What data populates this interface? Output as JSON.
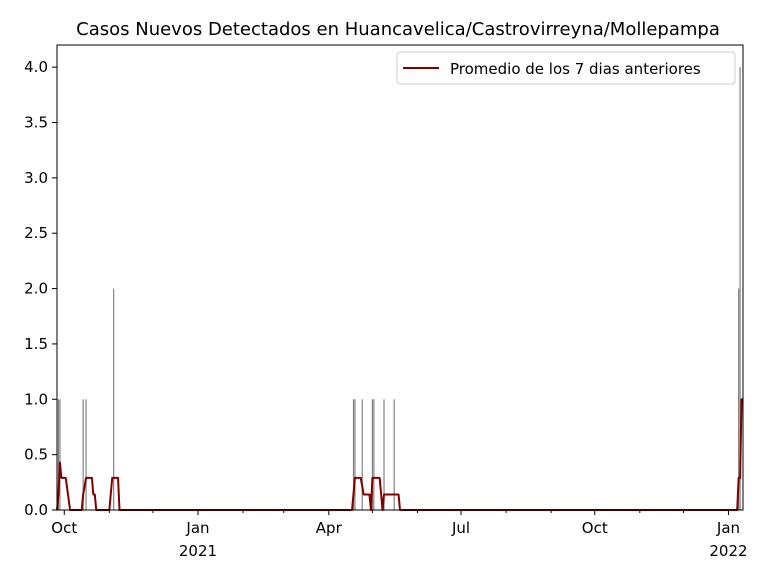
{
  "chart_data": {
    "type": "bar",
    "title": "Casos Nuevos Detectados en Huancavelica/Castrovirreyna/Mollepampa",
    "xlabel": "",
    "ylabel": "",
    "ylim": [
      0,
      4.2
    ],
    "xlim": [
      "2020-09-26",
      "2022-01-11"
    ],
    "grid": false,
    "legend_position": "top-right",
    "yticks": [
      "0.0",
      "0.5",
      "1.0",
      "1.5",
      "2.0",
      "2.5",
      "3.0",
      "3.5",
      "4.0"
    ],
    "xticks": [
      {
        "date": "2020-10-01",
        "label": "Oct",
        "sublabel": ""
      },
      {
        "date": "2021-01-01",
        "label": "Jan",
        "sublabel": "2021"
      },
      {
        "date": "2021-04-01",
        "label": "Apr",
        "sublabel": ""
      },
      {
        "date": "2021-07-01",
        "label": "Jul",
        "sublabel": ""
      },
      {
        "date": "2021-10-01",
        "label": "Oct",
        "sublabel": ""
      },
      {
        "date": "2022-01-01",
        "label": "Jan",
        "sublabel": "2022"
      }
    ],
    "colors": {
      "bars": "#808080",
      "line": "#800000"
    },
    "daily_cases": [
      {
        "date": "2020-09-27",
        "value": 1
      },
      {
        "date": "2020-09-28",
        "value": 1
      },
      {
        "date": "2020-10-14",
        "value": 1
      },
      {
        "date": "2020-10-16",
        "value": 1
      },
      {
        "date": "2020-11-04",
        "value": 2
      },
      {
        "date": "2021-04-18",
        "value": 1
      },
      {
        "date": "2021-04-19",
        "value": 1
      },
      {
        "date": "2021-04-24",
        "value": 1
      },
      {
        "date": "2021-05-01",
        "value": 1
      },
      {
        "date": "2021-05-02",
        "value": 1
      },
      {
        "date": "2021-05-09",
        "value": 1
      },
      {
        "date": "2021-05-16",
        "value": 1
      },
      {
        "date": "2022-01-08",
        "value": 2
      },
      {
        "date": "2022-01-09",
        "value": 4
      }
    ],
    "series": [
      {
        "name": "Promedio de los 7 dias anteriores",
        "type": "line",
        "points": [
          [
            "2020-09-26",
            0
          ],
          [
            "2020-09-27",
            0.14
          ],
          [
            "2020-09-28",
            0.43
          ],
          [
            "2020-09-29",
            0.29
          ],
          [
            "2020-10-02",
            0.29
          ],
          [
            "2020-10-05",
            0
          ],
          [
            "2020-10-13",
            0
          ],
          [
            "2020-10-14",
            0.14
          ],
          [
            "2020-10-16",
            0.29
          ],
          [
            "2020-10-20",
            0.29
          ],
          [
            "2020-10-21",
            0.14
          ],
          [
            "2020-10-22",
            0.14
          ],
          [
            "2020-10-23",
            0
          ],
          [
            "2020-11-01",
            0
          ],
          [
            "2020-11-03",
            0.29
          ],
          [
            "2020-11-07",
            0.29
          ],
          [
            "2020-11-08",
            0
          ],
          [
            "2021-04-17",
            0
          ],
          [
            "2021-04-19",
            0.29
          ],
          [
            "2021-04-23",
            0.29
          ],
          [
            "2021-04-25",
            0.14
          ],
          [
            "2021-04-29",
            0.14
          ],
          [
            "2021-04-30",
            0
          ],
          [
            "2021-05-01",
            0.29
          ],
          [
            "2021-05-06",
            0.29
          ],
          [
            "2021-05-08",
            0
          ],
          [
            "2021-05-09",
            0.14
          ],
          [
            "2021-05-19",
            0.14
          ],
          [
            "2021-05-20",
            0
          ],
          [
            "2022-01-07",
            0
          ],
          [
            "2022-01-08",
            0.29
          ],
          [
            "2022-01-09",
            0.29
          ],
          [
            "2022-01-10",
            1.0
          ],
          [
            "2022-01-11",
            1.0
          ]
        ]
      }
    ]
  }
}
